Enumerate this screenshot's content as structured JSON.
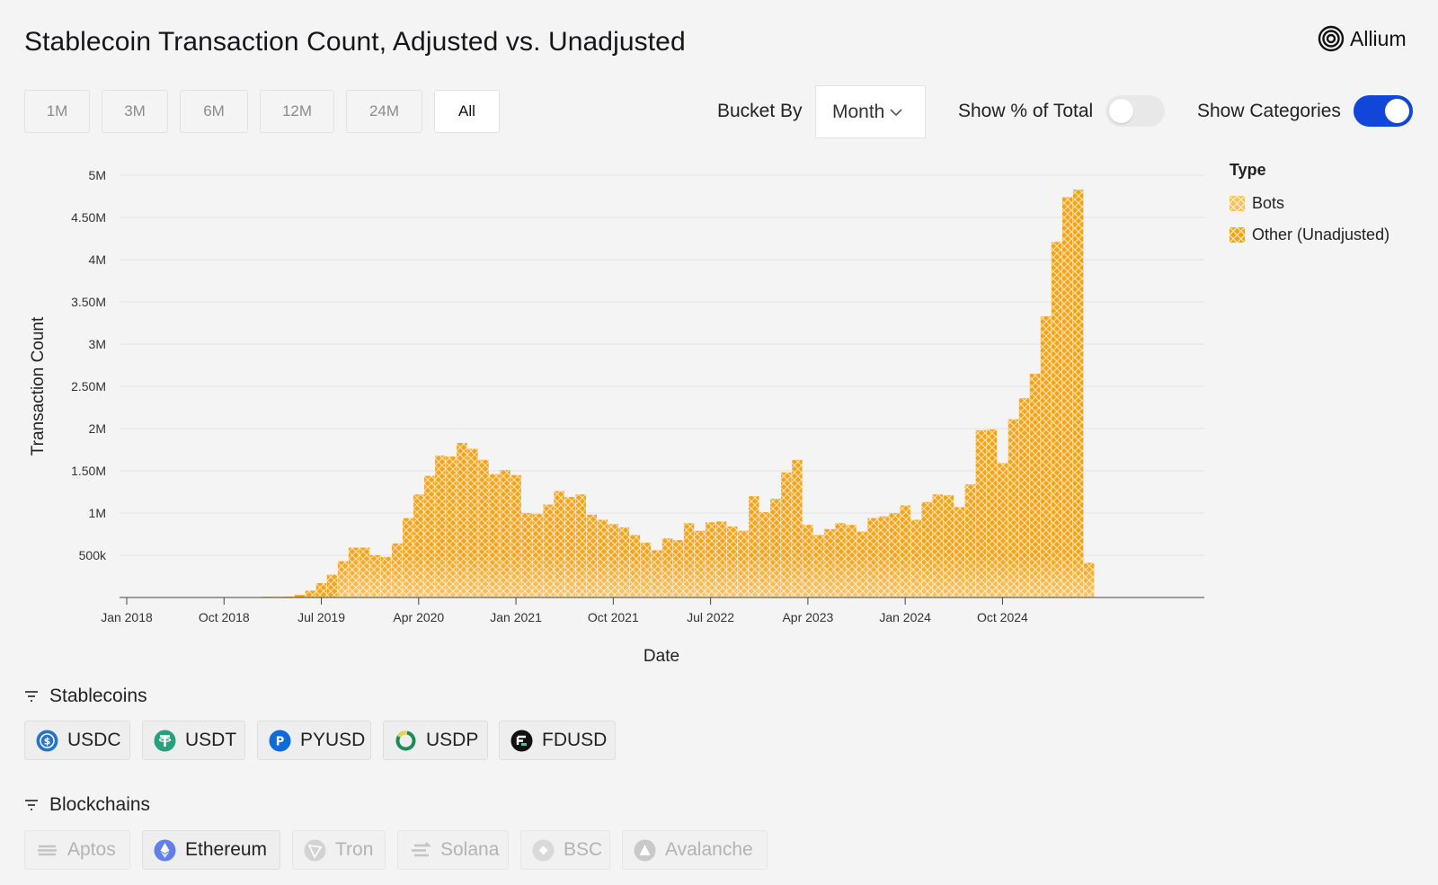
{
  "title": "Stablecoin Transaction Count, Adjusted vs. Unadjusted",
  "brand": {
    "name": "Allium",
    "icon": "allium-logo-icon"
  },
  "range_buttons": [
    {
      "label": "1M",
      "active": false
    },
    {
      "label": "3M",
      "active": false
    },
    {
      "label": "6M",
      "active": false
    },
    {
      "label": "12M",
      "active": false
    },
    {
      "label": "24M",
      "active": false
    },
    {
      "label": "All",
      "active": true
    }
  ],
  "controls": {
    "bucket_label": "Bucket By",
    "bucket_value": "Month",
    "pct_label": "Show % of Total",
    "pct_on": false,
    "categories_label": "Show Categories",
    "categories_on": true
  },
  "legend": {
    "title": "Type",
    "items": [
      {
        "label": "Bots",
        "color": "#f7c15c"
      },
      {
        "label": "Other (Unadjusted)",
        "color": "#f2a51c"
      }
    ]
  },
  "chart_data": {
    "type": "bar",
    "stacked": true,
    "xlabel": "Date",
    "ylabel": "Transaction Count",
    "ylim": [
      0,
      5000000
    ],
    "yticks": [
      500000,
      1000000,
      1500000,
      2000000,
      2500000,
      3000000,
      3500000,
      4000000,
      4500000,
      5000000
    ],
    "ytick_labels": [
      "500k",
      "1M",
      "1.50M",
      "2M",
      "2.50M",
      "3M",
      "3.50M",
      "4M",
      "4.50M",
      "5M"
    ],
    "xtick_labels": [
      "Jan 2018",
      "Oct 2018",
      "Jul 2019",
      "Apr 2020",
      "Jan 2021",
      "Oct 2021",
      "Jul 2022",
      "Apr 2023",
      "Jan 2024",
      "Oct 2024"
    ],
    "xtick_positions": [
      "2018-01",
      "2018-10",
      "2019-07",
      "2020-04",
      "2021-01",
      "2021-10",
      "2022-07",
      "2023-04",
      "2024-01",
      "2024-10"
    ],
    "categories": [
      "2018-01",
      "2018-02",
      "2018-03",
      "2018-04",
      "2018-05",
      "2018-06",
      "2018-07",
      "2018-08",
      "2018-09",
      "2018-10",
      "2018-11",
      "2018-12",
      "2019-01",
      "2019-02",
      "2019-03",
      "2019-04",
      "2019-05",
      "2019-06",
      "2019-07",
      "2019-08",
      "2019-09",
      "2019-10",
      "2019-11",
      "2019-12",
      "2020-01",
      "2020-02",
      "2020-03",
      "2020-04",
      "2020-05",
      "2020-06",
      "2020-07",
      "2020-08",
      "2020-09",
      "2020-10",
      "2020-11",
      "2020-12",
      "2021-01",
      "2021-02",
      "2021-03",
      "2021-04",
      "2021-05",
      "2021-06",
      "2021-07",
      "2021-08",
      "2021-09",
      "2021-10",
      "2021-11",
      "2021-12",
      "2022-01",
      "2022-02",
      "2022-03",
      "2022-04",
      "2022-05",
      "2022-06",
      "2022-07",
      "2022-08",
      "2022-09",
      "2022-10",
      "2022-11",
      "2022-12",
      "2023-01",
      "2023-02",
      "2023-03",
      "2023-04",
      "2023-05",
      "2023-06",
      "2023-07",
      "2023-08",
      "2023-09",
      "2023-10",
      "2023-11",
      "2023-12",
      "2024-01",
      "2024-02",
      "2024-03",
      "2024-04",
      "2024-05",
      "2024-06",
      "2024-07",
      "2024-08",
      "2024-09",
      "2024-10",
      "2024-11",
      "2024-12",
      "2025-01",
      "2025-02",
      "2025-03",
      "2025-04",
      "2025-05",
      "2025-06"
    ],
    "series": [
      {
        "name": "Bots",
        "color": "#f7c15c",
        "values": [
          0,
          0,
          0,
          0,
          0,
          0,
          0,
          0,
          0,
          0,
          0,
          0,
          0,
          0,
          0,
          0,
          0,
          0,
          0,
          0,
          0,
          0,
          0,
          0,
          0,
          0,
          0,
          0,
          0,
          0,
          0,
          0,
          0,
          0,
          0,
          0,
          0,
          0,
          0,
          0,
          0,
          0,
          0,
          0,
          0,
          0,
          0,
          0,
          0,
          0,
          0,
          0,
          0,
          0,
          0,
          0,
          0,
          0,
          0,
          0,
          0,
          0,
          0,
          0,
          0,
          0,
          0,
          0,
          0,
          0,
          0,
          0,
          0,
          0,
          0,
          0,
          0,
          0,
          0,
          0,
          0,
          0,
          0,
          0,
          0,
          0,
          0,
          0,
          0,
          0
        ]
      },
      {
        "name": "Other (Unadjusted)",
        "color": "#f2a51c",
        "values": [
          0,
          0,
          0,
          0,
          0,
          0,
          0,
          0,
          0,
          0,
          0,
          0,
          0,
          2000,
          5000,
          10000,
          30000,
          80000,
          170000,
          270000,
          430000,
          590000,
          590000,
          500000,
          480000,
          640000,
          940000,
          1220000,
          1440000,
          1680000,
          1670000,
          1830000,
          1760000,
          1630000,
          1460000,
          1510000,
          1450000,
          1000000,
          990000,
          1100000,
          1260000,
          1190000,
          1220000,
          980000,
          920000,
          870000,
          830000,
          740000,
          650000,
          560000,
          700000,
          680000,
          880000,
          790000,
          890000,
          900000,
          840000,
          790000,
          1200000,
          1010000,
          1170000,
          1480000,
          1630000,
          860000,
          740000,
          810000,
          880000,
          860000,
          780000,
          940000,
          960000,
          1000000,
          1090000,
          920000,
          1130000,
          1220000,
          1210000,
          1070000,
          1340000,
          1980000,
          1990000,
          1590000,
          2110000,
          2360000,
          2650000,
          3330000,
          4210000,
          4740000,
          4830000,
          410000
        ]
      }
    ]
  },
  "stablecoins": {
    "label": "Stablecoins",
    "items": [
      {
        "label": "USDC",
        "icon": "usdc-icon",
        "active": true
      },
      {
        "label": "USDT",
        "icon": "usdt-icon",
        "active": true
      },
      {
        "label": "PYUSD",
        "icon": "pyusd-icon",
        "active": true
      },
      {
        "label": "USDP",
        "icon": "usdp-icon",
        "active": true
      },
      {
        "label": "FDUSD",
        "icon": "fdusd-icon",
        "active": true
      }
    ]
  },
  "blockchains": {
    "label": "Blockchains",
    "items": [
      {
        "label": "Aptos",
        "icon": "aptos-icon",
        "active": false
      },
      {
        "label": "Ethereum",
        "icon": "ethereum-icon",
        "active": true
      },
      {
        "label": "Tron",
        "icon": "tron-icon",
        "active": false
      },
      {
        "label": "Solana",
        "icon": "solana-icon",
        "active": false
      },
      {
        "label": "BSC",
        "icon": "bsc-icon",
        "active": false
      },
      {
        "label": "Avalanche",
        "icon": "avalanche-icon",
        "active": false
      }
    ]
  }
}
